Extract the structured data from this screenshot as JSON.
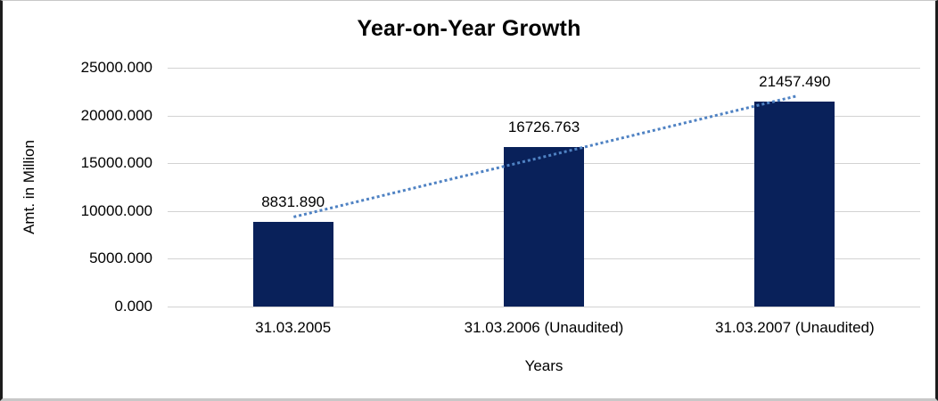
{
  "chart_data": {
    "type": "bar",
    "title": "Year-on-Year Growth",
    "xlabel": "Years",
    "ylabel": "Amt. in Million",
    "categories": [
      "31.03.2005",
      "31.03.2006 (Unaudited)",
      "31.03.2007 (Unaudited)"
    ],
    "values": [
      8831.89,
      16726.763,
      21457.49
    ],
    "value_labels": [
      "8831.890",
      "16726.763",
      "21457.490"
    ],
    "ylim": [
      0,
      25000
    ],
    "ytick_labels_top_to_bottom": [
      "25000.000",
      "20000.000",
      "15000.000",
      "10000.000",
      "5000.000",
      "0.000"
    ],
    "grid": true,
    "legend": false,
    "bar_color": "#09215a",
    "gridline_color": "#d2d2d2",
    "trendline": {
      "type": "linear",
      "style": "dotted",
      "color": "#4f82c3"
    }
  }
}
